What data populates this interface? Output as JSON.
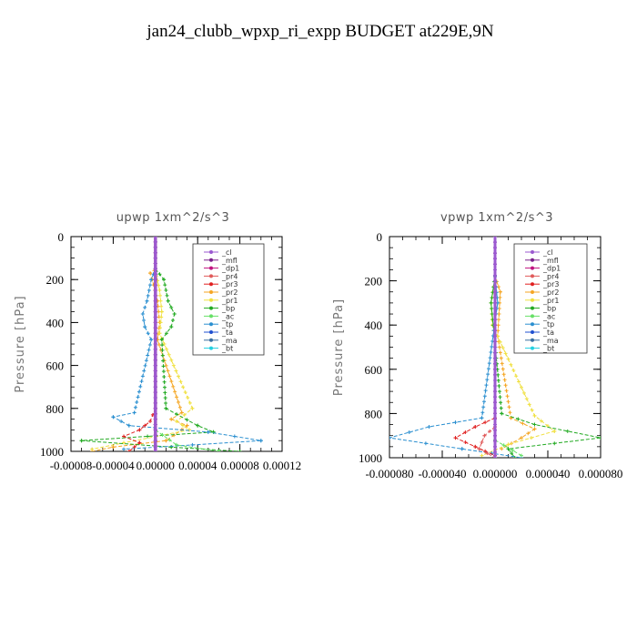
{
  "title": "jan24_clubb_wpxp_ri_expp  BUDGET at229E,9N",
  "legend_labels": [
    "_cl",
    "_mfl",
    "_dp1",
    "_pr4",
    "_pr3",
    "_pr2",
    "_pr1",
    "_bp",
    "_ac",
    "_tp",
    "_ta",
    "_ma",
    "_bt"
  ],
  "colors": {
    "_cl": "#9b59d0",
    "_mfl": "#7a1f8a",
    "_dp1": "#c0127f",
    "_pr4": "#e05a5a",
    "_pr3": "#e02020",
    "_pr2": "#f5a623",
    "_pr1": "#f0e040",
    "_bp": "#22aa22",
    "_ac": "#66e066",
    "_tp": "#2a8fd0",
    "_ta": "#2050d0",
    "_ma": "#3a6fa0",
    "_bt": "#22d0e0"
  },
  "chart_data": [
    {
      "type": "line",
      "title": "upwp   1xm^2/s^3",
      "ylabel": "Pressure [hPa]",
      "y_inverted": true,
      "ylim": [
        0,
        1000
      ],
      "xlim": [
        -8e-05,
        0.00012
      ],
      "xtick_labels": [
        "-0.00008",
        "-0.00004",
        "0.00000",
        "0.00004",
        "0.00008",
        "0.00012"
      ],
      "ytick_labels": [
        "0",
        "200",
        "400",
        "600",
        "800",
        "1000"
      ],
      "legend_position": "top-right",
      "series": [
        {
          "name": "_pr2",
          "points": [
            [
              0,
              150
            ],
            [
              -5e-06,
              170
            ],
            [
              -3e-06,
              200
            ],
            [
              2e-06,
              300
            ],
            [
              4e-06,
              400
            ],
            [
              2e-06,
              480
            ],
            [
              2.5e-05,
              820
            ],
            [
              1.5e-05,
              850
            ],
            [
              3e-05,
              880
            ],
            [
              2.5e-05,
              900
            ],
            [
              1e-05,
              950
            ],
            [
              -4e-05,
              980
            ],
            [
              -6e-05,
              1000
            ]
          ]
        },
        {
          "name": "_pr1",
          "points": [
            [
              0,
              160
            ],
            [
              4e-06,
              250
            ],
            [
              6e-06,
              350
            ],
            [
              4e-06,
              450
            ],
            [
              3.5e-05,
              800
            ],
            [
              2e-05,
              860
            ],
            [
              3.2e-05,
              900
            ],
            [
              -3e-05,
              960
            ],
            [
              -6e-05,
              990
            ]
          ]
        },
        {
          "name": "_bp",
          "points": [
            [
              0,
              150
            ],
            [
              8e-06,
              200
            ],
            [
              1.2e-05,
              300
            ],
            [
              1.8e-05,
              360
            ],
            [
              1.5e-05,
              420
            ],
            [
              6e-06,
              480
            ],
            [
              1e-05,
              800
            ],
            [
              4e-05,
              880
            ],
            [
              5.5e-05,
              910
            ],
            [
              -7e-05,
              950
            ],
            [
              1.5e-05,
              980
            ],
            [
              8e-05,
              1000
            ]
          ]
        },
        {
          "name": "_tp",
          "points": [
            [
              0,
              150
            ],
            [
              -4e-06,
              200
            ],
            [
              -8e-06,
              300
            ],
            [
              -1.2e-05,
              360
            ],
            [
              -1e-05,
              420
            ],
            [
              -4e-06,
              480
            ],
            [
              -2e-05,
              820
            ],
            [
              -4e-05,
              840
            ],
            [
              -2.5e-05,
              880
            ],
            [
              5e-05,
              910
            ],
            [
              0.0001,
              950
            ],
            [
              -3e-05,
              990
            ]
          ]
        },
        {
          "name": "_pr3",
          "points": [
            [
              0,
              800
            ],
            [
              -5e-06,
              860
            ],
            [
              -1.5e-05,
              900
            ],
            [
              -3e-05,
              930
            ],
            [
              -1.5e-05,
              960
            ],
            [
              -2.5e-05,
              1000
            ]
          ]
        },
        {
          "name": "_ac",
          "points": [
            [
              0,
              900
            ],
            [
              2e-05,
              970
            ],
            [
              6e-05,
              1000
            ]
          ]
        },
        {
          "name": "_dp1",
          "points": [
            [
              0,
              0
            ],
            [
              0,
              1000
            ]
          ]
        },
        {
          "name": "_mfl",
          "points": [
            [
              0,
              0
            ],
            [
              0,
              1000
            ]
          ]
        },
        {
          "name": "_cl",
          "points": [
            [
              0,
              0
            ],
            [
              0,
              1000
            ]
          ]
        }
      ]
    },
    {
      "type": "line",
      "title": "vpwp   1xm^2/s^3",
      "ylabel": "Pressure [hPa]",
      "y_inverted": true,
      "ylim": [
        0,
        1000
      ],
      "xlim": [
        -8e-05,
        8e-05
      ],
      "xtick_labels": [
        "-0.000080",
        "-0.000040",
        "0.000000",
        "0.000040",
        "0.000080"
      ],
      "ytick_labels": [
        "0",
        "200",
        "400",
        "600",
        "800",
        "1000"
      ],
      "legend_position": "top-right",
      "series": [
        {
          "name": "_pr2",
          "points": [
            [
              0,
              180
            ],
            [
              4e-06,
              250
            ],
            [
              3e-06,
              350
            ],
            [
              2e-06,
              450
            ],
            [
              1.2e-05,
              820
            ],
            [
              3e-05,
              870
            ],
            [
              2e-05,
              910
            ],
            [
              5e-06,
              960
            ]
          ]
        },
        {
          "name": "_pr1",
          "points": [
            [
              0,
              200
            ],
            [
              -3e-06,
              300
            ],
            [
              -2e-06,
              400
            ],
            [
              3e-05,
              810
            ],
            [
              4.5e-05,
              880
            ],
            [
              1e-05,
              940
            ],
            [
              -1e-05,
              990
            ]
          ]
        },
        {
          "name": "_bp",
          "points": [
            [
              0,
              180
            ],
            [
              -3e-06,
              300
            ],
            [
              5e-06,
              800
            ],
            [
              3e-05,
              850
            ],
            [
              8e-05,
              910
            ],
            [
              1e-05,
              960
            ],
            [
              1.5e-05,
              1000
            ]
          ]
        },
        {
          "name": "_tp",
          "points": [
            [
              0,
              180
            ],
            [
              2e-06,
              300
            ],
            [
              -1e-05,
              820
            ],
            [
              -5e-05,
              860
            ],
            [
              -8e-05,
              910
            ],
            [
              -2.5e-05,
              960
            ],
            [
              2e-05,
              1000
            ]
          ]
        },
        {
          "name": "_pr3",
          "points": [
            [
              0,
              820
            ],
            [
              -1.5e-05,
              860
            ],
            [
              -3e-05,
              910
            ],
            [
              -1.5e-05,
              950
            ],
            [
              0,
              990
            ]
          ]
        },
        {
          "name": "_pr4",
          "points": [
            [
              0,
              860
            ],
            [
              -8e-06,
              900
            ],
            [
              -1.2e-05,
              960
            ],
            [
              0,
              1000
            ]
          ]
        },
        {
          "name": "_ac",
          "points": [
            [
              0,
              920
            ],
            [
              2e-05,
              990
            ]
          ]
        },
        {
          "name": "_dp1",
          "points": [
            [
              0,
              0
            ],
            [
              0,
              1000
            ]
          ]
        },
        {
          "name": "_mfl",
          "points": [
            [
              0,
              0
            ],
            [
              0,
              1000
            ]
          ]
        },
        {
          "name": "_cl",
          "points": [
            [
              0,
              0
            ],
            [
              0,
              1000
            ]
          ]
        }
      ]
    }
  ]
}
